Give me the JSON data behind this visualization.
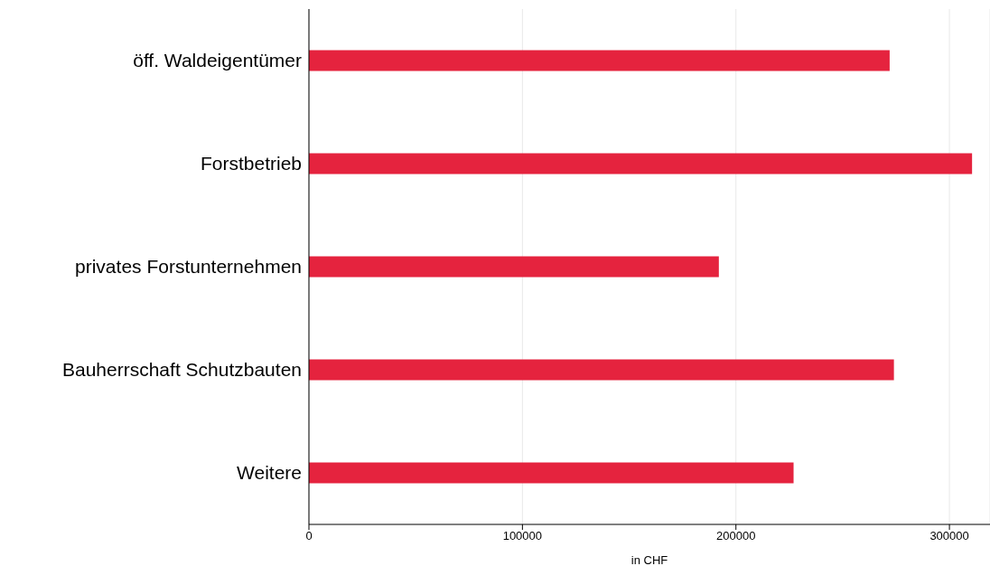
{
  "chart_data": {
    "type": "bar",
    "orientation": "horizontal",
    "xlabel": "in CHF",
    "categories": [
      "öff. Waldeigentümer",
      "Forstbetrieb",
      "privates Forstunternehmen",
      "Bauherrschaft Schutzbauten",
      "Weitere"
    ],
    "values": [
      272000,
      310600,
      192000,
      274000,
      227000
    ],
    "color": "#e5233e",
    "xlim": [
      0,
      319000
    ],
    "xticks": [
      0,
      100000,
      200000,
      300000
    ],
    "grid": "x"
  }
}
